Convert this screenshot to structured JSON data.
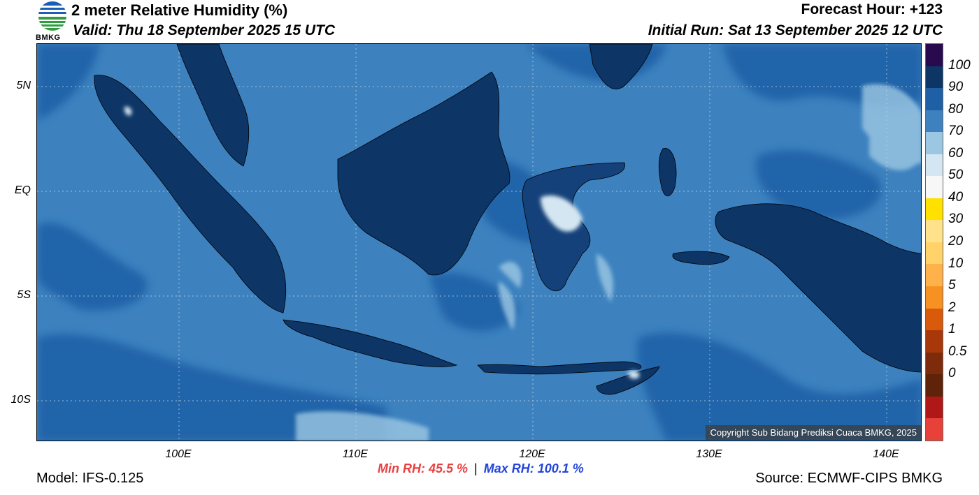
{
  "header": {
    "title": "2 meter Relative Humidity (%)",
    "valid": "Valid: Thu 18 September 2025 15 UTC",
    "forecast_hour": "Forecast Hour: +123",
    "initial_run": "Initial Run: Sat 13 September 2025 12 UTC",
    "logo_text": "BMKG"
  },
  "map": {
    "lat_labels": [
      "5N",
      "EQ",
      "5S",
      "10S"
    ],
    "lon_labels": [
      "100E",
      "110E",
      "120E",
      "130E",
      "140E"
    ],
    "copyright": "Copyright Sub Bidang Prediksi Cuaca BMKG, 2025",
    "colors": {
      "ocean_base": "#3d82bf",
      "ocean_deep": "#1f5fa6",
      "land_humid": "#0d3566",
      "land_mid": "#15417a",
      "dry_patch": "#9cc7e3",
      "light_patch": "#d4e6f2"
    }
  },
  "colorbar": {
    "labels": [
      "100",
      "90",
      "80",
      "70",
      "60",
      "50",
      "40",
      "30",
      "20",
      "10",
      "5",
      "2",
      "1",
      "0.5",
      "0"
    ],
    "colors": [
      "#2a0a4f",
      "#0d3566",
      "#1f5fa6",
      "#3d82bf",
      "#9cc7e3",
      "#d4e6f2",
      "#f7f7f7",
      "#ffe100",
      "#ffe28a",
      "#ffd36a",
      "#ffb24a",
      "#f79122",
      "#d95a0a",
      "#a8380a",
      "#7d2b0a",
      "#5e2309",
      "#b01818",
      "#e8413a"
    ]
  },
  "footer": {
    "min_rh": "Min RH:  45.5 %",
    "separator": "|",
    "max_rh": "Max RH: 100.1 %",
    "model": "Model: IFS-0.125",
    "source": "Source: ECMWF-CIPS BMKG"
  }
}
